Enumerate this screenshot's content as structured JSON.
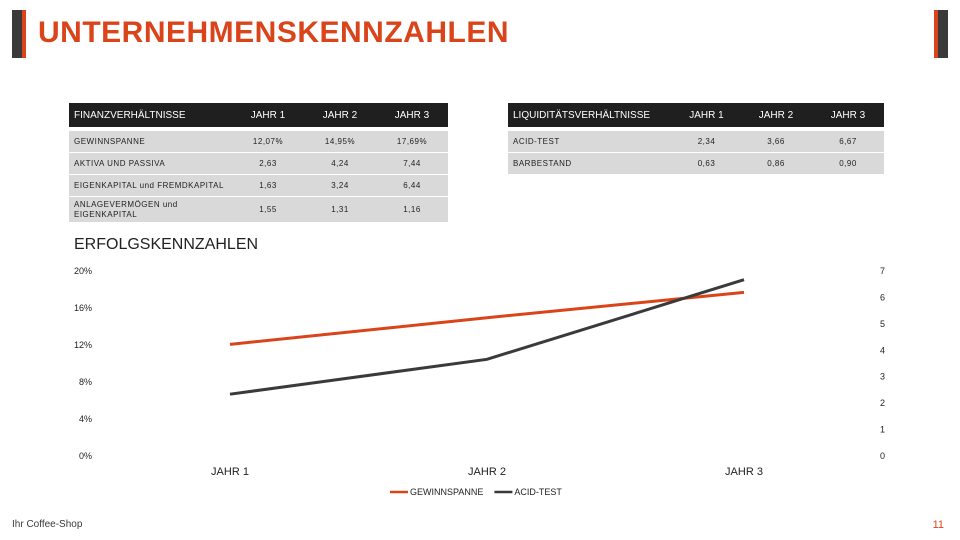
{
  "title": "UNTERNEHMENSKENNZAHLEN",
  "colors": {
    "accent": "#d9441a",
    "dark": "#3a3a3a",
    "table_header": "#1f1f1f",
    "table_row": "#d9d9d9"
  },
  "financial_table": {
    "headers": [
      "FINANZVERHÄLTNISSE",
      "JAHR 1",
      "JAHR 2",
      "JAHR 3"
    ],
    "rows": [
      [
        "GEWINNSPANNE",
        "12,07%",
        "14,95%",
        "17,69%"
      ],
      [
        "AKTIVA UND PASSIVA",
        "2,63",
        "4,24",
        "7,44"
      ],
      [
        "EIGENKAPITAL und FREMDKAPITAL",
        "1,63",
        "3,24",
        "6,44"
      ],
      [
        "ANLAGEVERMÖGEN und EIGENKAPITAL",
        "1,55",
        "1,31",
        "1,16"
      ]
    ]
  },
  "liquidity_table": {
    "headers": [
      "LIQUIDITÄTSVERHÄLTNISSE",
      "JAHR 1",
      "JAHR 2",
      "JAHR 3"
    ],
    "rows": [
      [
        "ACID-TEST",
        "2,34",
        "3,66",
        "6,67"
      ],
      [
        "BARBESTAND",
        "0,63",
        "0,86",
        "0,90"
      ]
    ]
  },
  "chart_data": {
    "type": "line",
    "title": "ERFOLGSKENNZAHLEN",
    "categories": [
      "JAHR 1",
      "JAHR 2",
      "JAHR 3"
    ],
    "series": [
      {
        "name": "GEWINNSPANNE",
        "axis": "left",
        "values": [
          12.07,
          14.95,
          17.69
        ],
        "color": "#d9441a"
      },
      {
        "name": "ACID-TEST",
        "axis": "right",
        "values": [
          2.34,
          3.66,
          6.67
        ],
        "color": "#3a3a3a"
      }
    ],
    "y_left": {
      "min": 0,
      "max": 20,
      "ticks": [
        "0%",
        "4%",
        "8%",
        "12%",
        "16%",
        "20%"
      ]
    },
    "y_right": {
      "min": 0,
      "max": 7,
      "ticks": [
        "0",
        "1",
        "2",
        "3",
        "4",
        "5",
        "6",
        "7"
      ]
    },
    "legend": "bottom"
  },
  "footer": {
    "logo": "Ihr Coffee-Shop",
    "page": "11"
  }
}
